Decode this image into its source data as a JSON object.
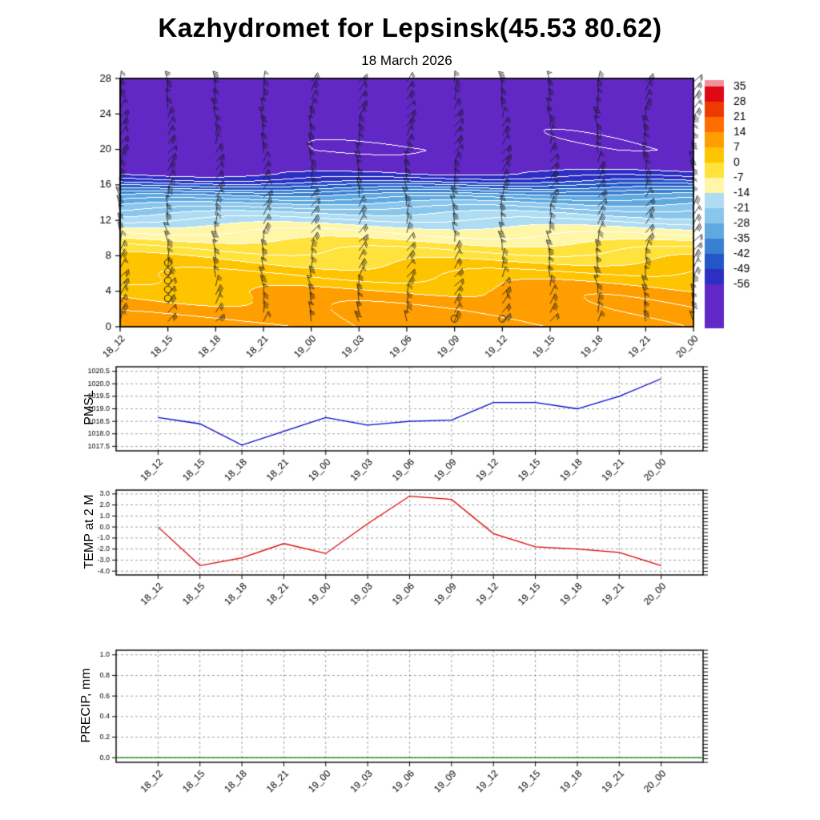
{
  "title": "Kazhydromet for Lepsinsk(45.53 80.62)",
  "subtitle": "18 March 2026",
  "panels": {
    "pmsl_label": "PMSL",
    "temp_label": "TEMP at 2 M",
    "precip_label": "PRECIP, mm"
  },
  "time_labels": [
    "18_12",
    "18_15",
    "18_18",
    "18_21",
    "19_00",
    "19_03",
    "19_06",
    "19_09",
    "19_12",
    "19_15",
    "19_18",
    "19_21",
    "20_00"
  ],
  "chart_data": [
    {
      "type": "heatmap",
      "name": "temperature-height cross-section with wind barbs",
      "categories": [
        "18_12",
        "18_15",
        "18_18",
        "18_21",
        "19_00",
        "19_03",
        "19_06",
        "19_09",
        "19_12",
        "19_15",
        "19_18",
        "19_21",
        "20_00"
      ],
      "ylim": [
        0,
        28
      ],
      "yticks": [
        0,
        4,
        8,
        12,
        16,
        20,
        24,
        28
      ],
      "shade_interval": 7,
      "contour_interval": 3.5,
      "profile_heights": [
        0,
        2,
        4,
        6,
        8,
        9,
        10,
        11,
        12,
        13,
        14,
        15,
        15.8,
        16.5,
        17.3,
        18,
        20,
        22,
        24,
        26,
        28
      ],
      "profile_temps": [
        11,
        9.5,
        7.5,
        4,
        -1,
        -4,
        -8,
        -12,
        -17,
        -22,
        -28,
        -35,
        -43,
        -50,
        -55.5,
        -57.2,
        -59,
        -58.6,
        -58.2,
        -57.8,
        -57.4
      ],
      "colorbar_labels": [
        35,
        28,
        21,
        14,
        7,
        0,
        -7,
        -14,
        -21,
        -28,
        -35,
        -42,
        -49,
        -56
      ],
      "band_colors": [
        "#F2919E",
        "#E00814",
        "#EE3A00",
        "#FF6D00",
        "#FF9E00",
        "#FFC400",
        "#FFE23C",
        "#FFF6A8",
        "#AEDCF2",
        "#8AC6EC",
        "#5FA9E0",
        "#3A80D2",
        "#2456C8",
        "#2B2FC4",
        "#6128C6"
      ],
      "calm_circles": [
        {
          "t": 1,
          "h": 7.2
        },
        {
          "t": 1,
          "h": 6.2
        },
        {
          "t": 1,
          "h": 5.2
        },
        {
          "t": 1,
          "h": 4.2
        },
        {
          "t": 1,
          "h": 3.2
        },
        {
          "t": 7,
          "h": 0.9
        },
        {
          "t": 8,
          "h": 0.9
        }
      ],
      "wind_barb_grid": {
        "columns": 13,
        "rows": 28
      }
    },
    {
      "type": "line",
      "name": "PMSL",
      "color": "#0000CD",
      "categories": [
        "18_12",
        "18_15",
        "18_18",
        "18_21",
        "19_00",
        "19_03",
        "19_06",
        "19_09",
        "19_12",
        "19_15",
        "19_18",
        "19_21",
        "20_00"
      ],
      "values": [
        1018.65,
        1018.4,
        1017.55,
        1018.1,
        1018.65,
        1018.35,
        1018.5,
        1018.55,
        1019.25,
        1019.25,
        1019.0,
        1019.5,
        1020.2
      ],
      "yticks": [
        1020.5,
        1020.0,
        1019.5,
        1019.0,
        1018.5,
        1018.0,
        1017.5
      ],
      "ylim": [
        1017.32,
        1020.68
      ],
      "full_width": false
    },
    {
      "type": "line",
      "name": "TEMP at 2 M",
      "color": "#DC0000",
      "categories": [
        "18_12",
        "18_15",
        "18_18",
        "18_21",
        "19_00",
        "19_03",
        "19_06",
        "19_09",
        "19_12",
        "19_15",
        "19_18",
        "19_21",
        "20_00"
      ],
      "values": [
        0.0,
        -3.5,
        -2.8,
        -1.5,
        -2.4,
        0.3,
        2.8,
        2.5,
        -0.6,
        -1.8,
        -2.0,
        -2.3,
        -3.5
      ],
      "yticks": [
        3.0,
        2.0,
        1.0,
        0.0,
        -1.0,
        -2.0,
        -3.0,
        -4.0
      ],
      "ylim": [
        -4.35,
        3.35
      ],
      "full_width": false
    },
    {
      "type": "line",
      "name": "PRECIP, mm",
      "color": "#008000",
      "categories": [
        "18_12",
        "18_15",
        "18_18",
        "18_21",
        "19_00",
        "19_03",
        "19_06",
        "19_09",
        "19_12",
        "19_15",
        "19_18",
        "19_21",
        "20_00"
      ],
      "values": [
        0,
        0,
        0,
        0,
        0,
        0,
        0,
        0,
        0,
        0,
        0,
        0,
        0
      ],
      "yticks": [
        1.0,
        0.8,
        0.6,
        0.4,
        0.2,
        0.0
      ],
      "ylim": [
        -0.045,
        1.045
      ],
      "full_width": true
    }
  ]
}
